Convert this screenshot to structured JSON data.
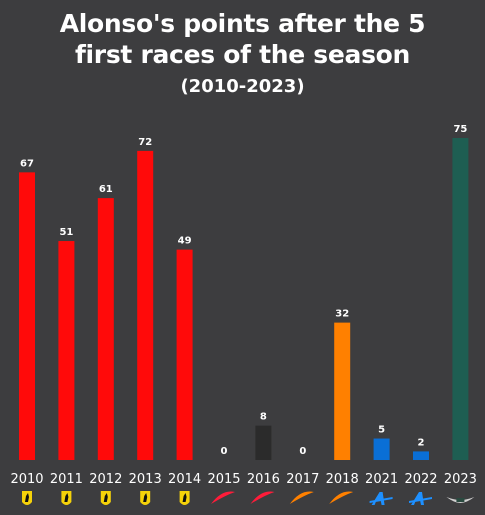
{
  "header": {
    "title_line1": "Alonso's points after the 5",
    "title_line2": "first races of the season",
    "subtitle": "(2010-2023)"
  },
  "chart_data": {
    "type": "bar",
    "title": "Alonso's points after the 5 first races of the season",
    "subtitle": "(2010-2023)",
    "xlabel": "",
    "ylabel": "",
    "ylim": [
      0,
      75
    ],
    "grid": false,
    "categories": [
      "2010",
      "2011",
      "2012",
      "2013",
      "2014",
      "2015",
      "2016",
      "2017",
      "2018",
      "2021",
      "2022",
      "2023"
    ],
    "values": [
      67,
      51,
      61,
      72,
      49,
      0,
      8,
      0,
      32,
      5,
      2,
      75
    ],
    "data_labels": [
      "67",
      "51",
      "61",
      "72",
      "49",
      "0",
      "8",
      "0",
      "32",
      "5",
      "2",
      "75"
    ],
    "bar_colors": [
      "#ff0a0a",
      "#ff0a0a",
      "#ff0a0a",
      "#ff0a0a",
      "#ff0a0a",
      "#ff0a0a",
      "#2b2b2b",
      "#ff0a0a",
      "#ff8000",
      "#0a6fd6",
      "#0a6fd6",
      "#1e5e52"
    ],
    "team_logo_icons": [
      "ferrari-icon",
      "ferrari-icon",
      "ferrari-icon",
      "ferrari-icon",
      "ferrari-icon",
      "mclaren-icon",
      "mclaren-icon",
      "mclaren-icon",
      "mclaren-icon",
      "alpine-icon",
      "alpine-icon",
      "aston-martin-icon"
    ],
    "team_logo_colors": [
      "#f5d20a",
      "#f5d20a",
      "#f5d20a",
      "#f5d20a",
      "#f5d20a",
      "#ff1c3a",
      "#ff1c3a",
      "#ff8000",
      "#ff8000",
      "#1e90ff",
      "#1e90ff",
      "#d0d0d0"
    ]
  }
}
